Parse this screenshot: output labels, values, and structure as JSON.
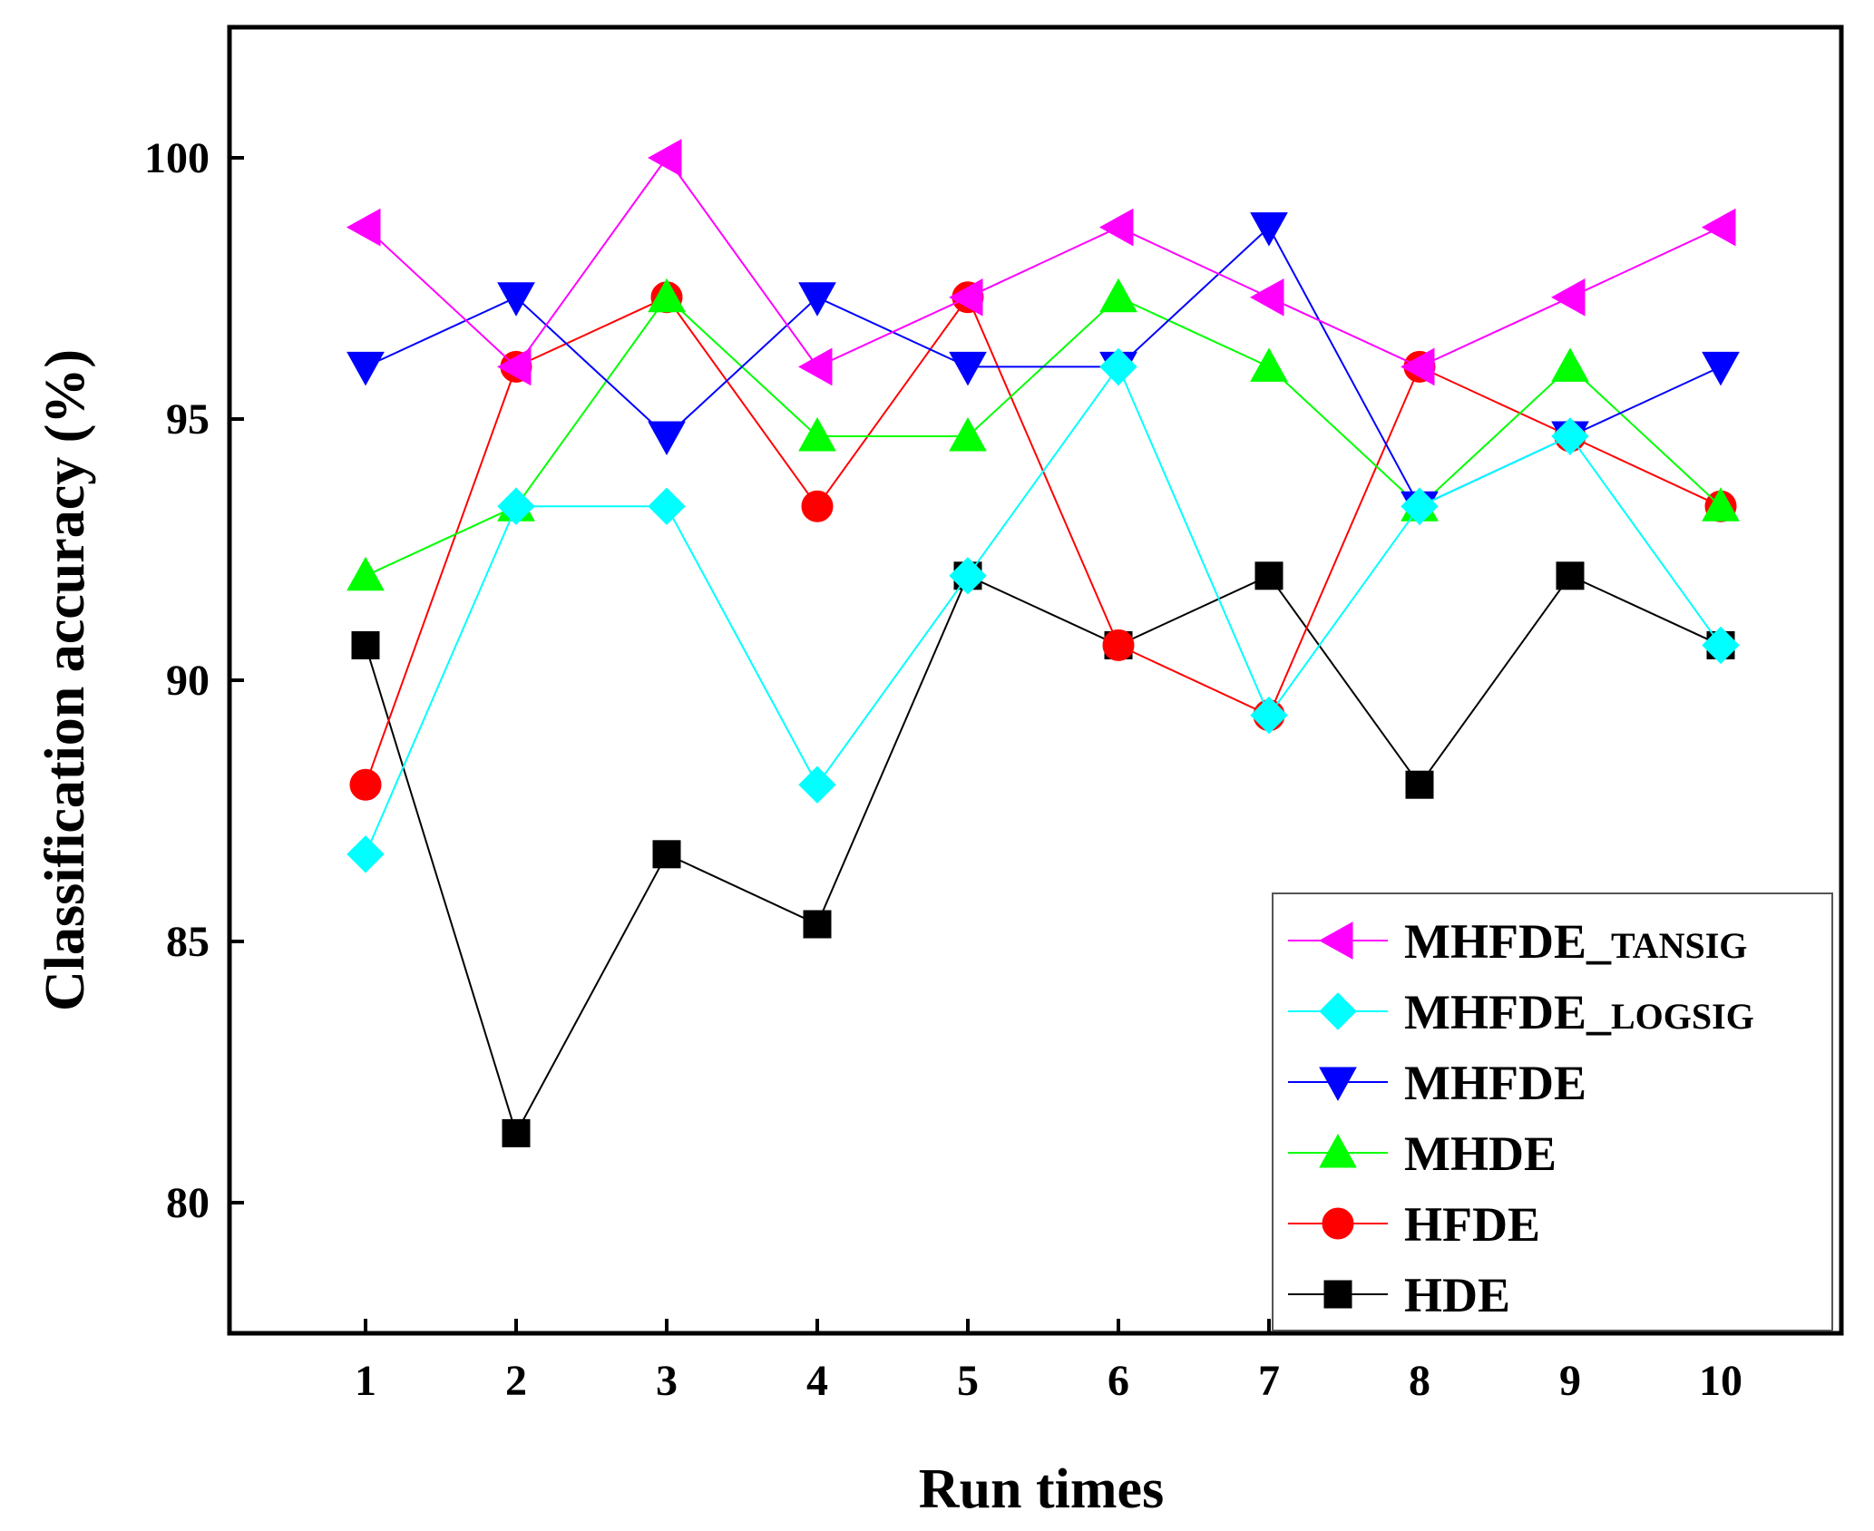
{
  "chart_data": {
    "type": "line",
    "title": "",
    "xlabel": "Run times",
    "ylabel": "Classification accuracy (%)",
    "categories": [
      1,
      2,
      3,
      4,
      5,
      6,
      7,
      8,
      9,
      10
    ],
    "xticks": [
      "1",
      "2",
      "3",
      "4",
      "5",
      "6",
      "7",
      "8",
      "9",
      "10"
    ],
    "ylim": [
      77.5,
      102.5
    ],
    "yticks": [
      80,
      85,
      90,
      95,
      100
    ],
    "grid": false,
    "legend_position": "bottom-right",
    "series": [
      {
        "name": "MHFDE_TANSIG",
        "name_main": "MHFDE_",
        "name_sub": "TANSIG",
        "color": "#ff00ff",
        "marker": "triangle-left",
        "values": [
          98.67,
          96.0,
          100.0,
          96.0,
          97.33,
          98.67,
          97.33,
          96.0,
          97.33,
          98.67
        ]
      },
      {
        "name": "MHFDE_LOGSIG",
        "name_main": "MHFDE_",
        "name_sub": "LOGSIG",
        "color": "#00ffff",
        "marker": "diamond",
        "values": [
          86.67,
          93.33,
          93.33,
          88.0,
          92.0,
          96.0,
          89.33,
          93.33,
          94.67,
          90.67
        ]
      },
      {
        "name": "MHFDE",
        "name_main": "MHFDE",
        "name_sub": "",
        "color": "#0000ff",
        "marker": "triangle-down",
        "values": [
          96.0,
          97.33,
          94.67,
          97.33,
          96.0,
          96.0,
          98.67,
          93.33,
          94.67,
          96.0
        ]
      },
      {
        "name": "MHDE",
        "name_main": "MHDE",
        "name_sub": "",
        "color": "#00ff00",
        "marker": "triangle-up",
        "values": [
          92.0,
          93.33,
          97.33,
          94.67,
          94.67,
          97.33,
          96.0,
          93.33,
          96.0,
          93.33
        ]
      },
      {
        "name": "HFDE",
        "name_main": "HFDE",
        "name_sub": "",
        "color": "#ff0000",
        "marker": "circle",
        "values": [
          88.0,
          96.0,
          97.33,
          93.33,
          97.33,
          90.67,
          89.33,
          96.0,
          94.67,
          93.33
        ]
      },
      {
        "name": "HDE",
        "name_main": "HDE",
        "name_sub": "",
        "color": "#000000",
        "marker": "square",
        "values": [
          90.67,
          81.33,
          86.67,
          85.33,
          92.0,
          90.67,
          92.0,
          88.0,
          92.0,
          90.67
        ]
      }
    ]
  }
}
